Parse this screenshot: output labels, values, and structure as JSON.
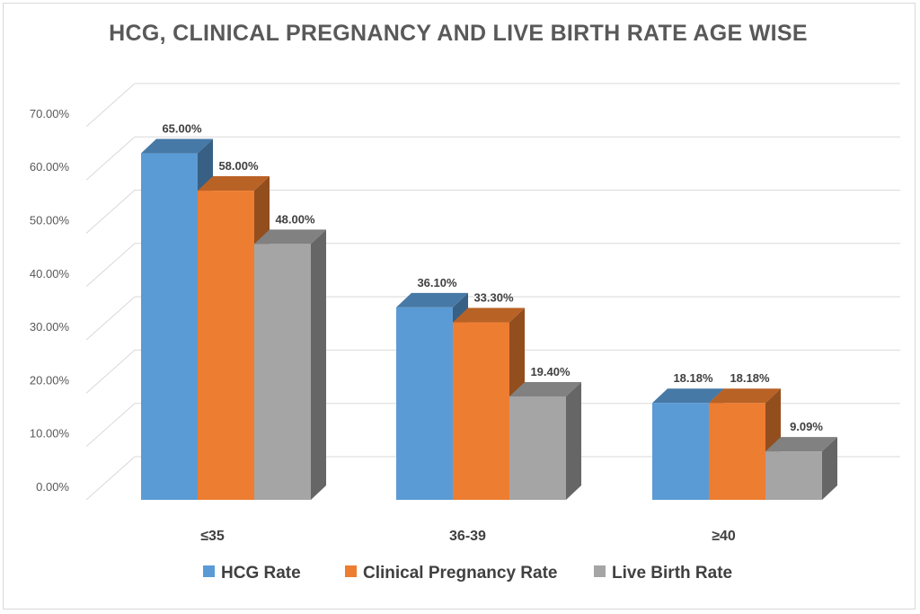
{
  "chart_data": {
    "type": "bar",
    "title": "HCG, CLINICAL PREGNANCY AND LIVE BIRTH RATE AGE WISE",
    "xlabel": "",
    "ylabel": "",
    "categories": [
      "≤35",
      "36-39",
      "≥40"
    ],
    "series": [
      {
        "name": "HCG Rate",
        "values": [
          65.0,
          36.1,
          18.18
        ],
        "labels": [
          "65.00%",
          "36.10%",
          "18.18%"
        ],
        "color": "#5b9bd5"
      },
      {
        "name": "Clinical Pregnancy Rate",
        "values": [
          58.0,
          33.3,
          18.18
        ],
        "labels": [
          "58.00%",
          "33.30%",
          "18.18%"
        ],
        "color": "#ed7d31"
      },
      {
        "name": "Live Birth Rate",
        "values": [
          48.0,
          19.4,
          9.09
        ],
        "labels": [
          "48.00%",
          "19.40%",
          "9.09%"
        ],
        "color": "#a5a5a5"
      }
    ],
    "yticks": [
      "0.00%",
      "10.00%",
      "20.00%",
      "30.00%",
      "40.00%",
      "50.00%",
      "60.00%",
      "70.00%"
    ],
    "ylim": [
      0,
      75
    ],
    "grid": true,
    "legend": "bottom",
    "style": "3d-column"
  }
}
